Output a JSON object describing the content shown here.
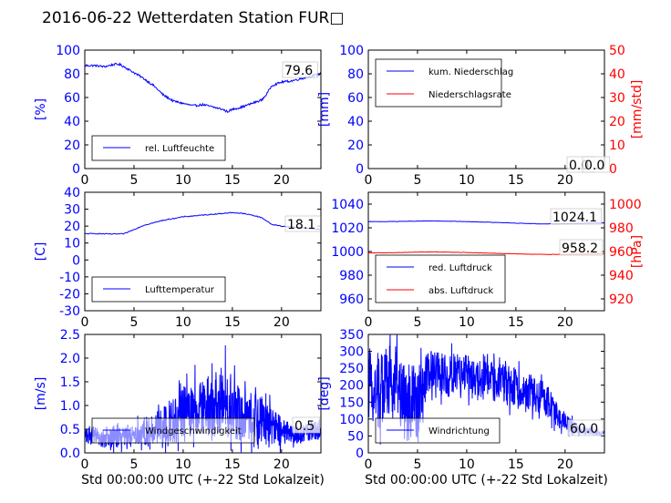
{
  "title": "2016-06-22 Wetterdaten Station FUR□",
  "colors": {
    "primary": "#0000ff",
    "secondary": "#ff0000",
    "axis": "#000000"
  },
  "chart_data": [
    {
      "type": "line",
      "ylabel": "[%]",
      "xlim": [
        0,
        24
      ],
      "xticks": [
        0,
        5,
        10,
        15,
        20
      ],
      "ylim": [
        0,
        100
      ],
      "yticks": [
        0,
        20,
        40,
        60,
        80,
        100
      ],
      "legend": "lower-left",
      "series": [
        {
          "name": "rel. Luftfeuchte",
          "x": [
            0,
            1,
            2,
            3,
            3.5,
            4,
            5,
            6,
            7,
            7.5,
            8,
            9,
            10,
            11,
            12,
            13,
            14,
            14.5,
            15,
            16,
            17,
            18,
            18.5,
            19,
            20,
            21,
            22,
            23,
            24
          ],
          "values": [
            87,
            87,
            86,
            88,
            88,
            86,
            81,
            76,
            70,
            66,
            62,
            57,
            55,
            53,
            54,
            52,
            50,
            48,
            50,
            52,
            55,
            58,
            63,
            70,
            73,
            74,
            76,
            78,
            80
          ]
        }
      ],
      "last_values": [
        "79.6"
      ]
    },
    {
      "type": "line",
      "ylabel": "[mm]",
      "ylabel2": "[mm/std]",
      "xlim": [
        0,
        24
      ],
      "xticks": [
        0,
        5,
        10,
        15,
        20
      ],
      "ylim": [
        0,
        100
      ],
      "yticks": [
        0,
        20,
        40,
        60,
        80,
        100
      ],
      "y2lim": [
        0,
        50
      ],
      "y2ticks": [
        0,
        10,
        20,
        30,
        40,
        50
      ],
      "legend": "upper-left",
      "series": [
        {
          "name": "kum. Niederschlag",
          "axis": "left",
          "x": [
            0,
            24
          ],
          "values": [
            0,
            0
          ]
        },
        {
          "name": "Niederschlagsrate",
          "axis": "right",
          "x": [
            0,
            24
          ],
          "values": [
            0,
            0
          ]
        }
      ],
      "last_values": [
        "0.0",
        "0.0"
      ]
    },
    {
      "type": "line",
      "ylabel": "[C]",
      "xlim": [
        0,
        24
      ],
      "xticks": [
        0,
        5,
        10,
        15,
        20
      ],
      "ylim": [
        -30,
        40
      ],
      "yticks": [
        -30,
        -20,
        -10,
        0,
        10,
        20,
        30,
        40
      ],
      "legend": "lower-left",
      "series": [
        {
          "name": "Lufttemperatur",
          "x": [
            0,
            1,
            2,
            3,
            4,
            5,
            6,
            7,
            8,
            9,
            10,
            11,
            12,
            13,
            14,
            15,
            16,
            17,
            18,
            19,
            20,
            21,
            22,
            23,
            24
          ],
          "values": [
            15.5,
            15.6,
            15.4,
            15.3,
            15.5,
            18,
            20.5,
            22,
            23.5,
            24.5,
            25.5,
            26,
            26.5,
            27,
            27.5,
            28,
            27.5,
            26.5,
            25,
            21,
            20,
            19.5,
            19,
            18.5,
            18.1
          ]
        }
      ],
      "last_values": [
        "18.1"
      ]
    },
    {
      "type": "line",
      "ylabel2": "[hPa]",
      "xlim": [
        0,
        24
      ],
      "xticks": [
        0,
        5,
        10,
        15,
        20
      ],
      "ylim": [
        950,
        1050
      ],
      "yticks": [
        960,
        980,
        1000,
        1020,
        1040
      ],
      "y2lim": [
        910,
        1010
      ],
      "y2ticks": [
        920,
        940,
        960,
        980,
        1000
      ],
      "legend": "lower-left",
      "series": [
        {
          "name": "red. Luftdruck",
          "axis": "left",
          "x": [
            0,
            2,
            4,
            6,
            8,
            10,
            12,
            14,
            16,
            18,
            20,
            22,
            24
          ],
          "values": [
            1025.2,
            1025.3,
            1025.5,
            1025.8,
            1025.6,
            1025.2,
            1024.8,
            1024.2,
            1023.6,
            1023.3,
            1023.5,
            1023.9,
            1024.1
          ]
        },
        {
          "name": "abs. Luftdruck",
          "axis": "right",
          "x": [
            0,
            2,
            4,
            6,
            8,
            10,
            12,
            14,
            16,
            18,
            20,
            22,
            24
          ],
          "values": [
            958.8,
            958.9,
            959.3,
            959.6,
            959.5,
            959.1,
            958.7,
            958.2,
            957.8,
            957.5,
            957.6,
            957.9,
            958.2
          ]
        }
      ],
      "last_values": [
        "1024.1",
        "958.2"
      ]
    },
    {
      "type": "line",
      "ylabel": "[m/s]",
      "xlabel": "Std 00:00:00 UTC (+-22 Std Lokalzeit)",
      "xlim": [
        0,
        24
      ],
      "xticks": [
        0,
        5,
        10,
        15,
        20
      ],
      "ylim": [
        0,
        2.5
      ],
      "yticks": [
        0,
        0.5,
        1.0,
        1.5,
        2.0,
        2.5
      ],
      "legend": "lower-left",
      "series": [
        {
          "name": "Windgeschwindigkeit",
          "x": [
            0,
            1,
            2,
            3,
            4,
            5,
            6,
            7,
            8,
            9,
            10,
            11,
            12,
            13,
            14,
            15,
            16,
            17,
            18,
            19,
            20,
            21,
            22,
            23,
            24
          ],
          "values": [
            0.4,
            0.35,
            0.3,
            0.3,
            0.35,
            0.4,
            0.45,
            0.5,
            0.6,
            0.7,
            0.8,
            0.9,
            0.9,
            0.95,
            1.0,
            0.9,
            0.85,
            0.75,
            0.7,
            0.55,
            0.45,
            0.4,
            0.4,
            0.45,
            0.5
          ],
          "spread": [
            0.2,
            0.2,
            0.2,
            0.2,
            0.2,
            0.2,
            0.3,
            0.3,
            0.4,
            0.5,
            0.6,
            0.6,
            0.6,
            0.6,
            0.7,
            0.6,
            0.6,
            0.5,
            0.5,
            0.4,
            0.3,
            0.2,
            0.2,
            0.2,
            0.2
          ],
          "max": {
            "x": 14.3,
            "value": 2.27
          }
        }
      ],
      "last_values": [
        "0.5"
      ]
    },
    {
      "type": "line",
      "ylabel": "[deg]",
      "xlabel": "Std 00:00:00 UTC (+-22 Std Lokalzeit)",
      "xlim": [
        0,
        24
      ],
      "xticks": [
        0,
        5,
        10,
        15,
        20
      ],
      "ylim": [
        0,
        350
      ],
      "yticks": [
        0,
        50,
        100,
        150,
        200,
        250,
        300,
        350
      ],
      "legend": "lower-left",
      "series": [
        {
          "name": "Windrichtung",
          "x": [
            0,
            1,
            2,
            3,
            4,
            5,
            6,
            7,
            8,
            9,
            10,
            11,
            12,
            13,
            14,
            15,
            16,
            17,
            18,
            19,
            20,
            21,
            22,
            23,
            24
          ],
          "values": [
            200,
            180,
            220,
            200,
            150,
            150,
            230,
            250,
            220,
            240,
            230,
            210,
            220,
            210,
            200,
            190,
            180,
            170,
            160,
            120,
            90,
            70,
            65,
            60,
            60
          ],
          "spread": [
            100,
            120,
            110,
            110,
            120,
            100,
            70,
            60,
            60,
            60,
            60,
            60,
            60,
            60,
            60,
            60,
            50,
            50,
            50,
            40,
            30,
            20,
            15,
            10,
            5
          ]
        }
      ],
      "last_values": [
        "60.0"
      ]
    }
  ]
}
